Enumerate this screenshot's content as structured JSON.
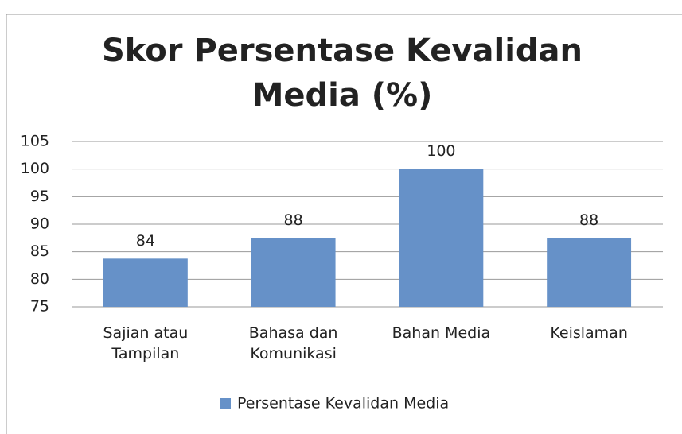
{
  "chart_data": {
    "type": "bar",
    "title": "Skor Persentase Kevalidan Media (%)",
    "categories": [
      "Sajian atau Tampilan",
      "Bahasa dan Komunikasi",
      "Bahan Media",
      "Keislaman"
    ],
    "series": [
      {
        "name": "Persentase Kevalidan Media",
        "color": "#6691c8",
        "values": [
          83.75,
          87.5,
          100,
          87.5
        ],
        "value_labels": [
          "84",
          "88",
          "100",
          "88"
        ]
      }
    ],
    "ylim": [
      75,
      105
    ],
    "yticks": [
      75,
      80,
      85,
      90,
      95,
      100,
      105
    ],
    "grid": true,
    "legend": "bottom"
  }
}
